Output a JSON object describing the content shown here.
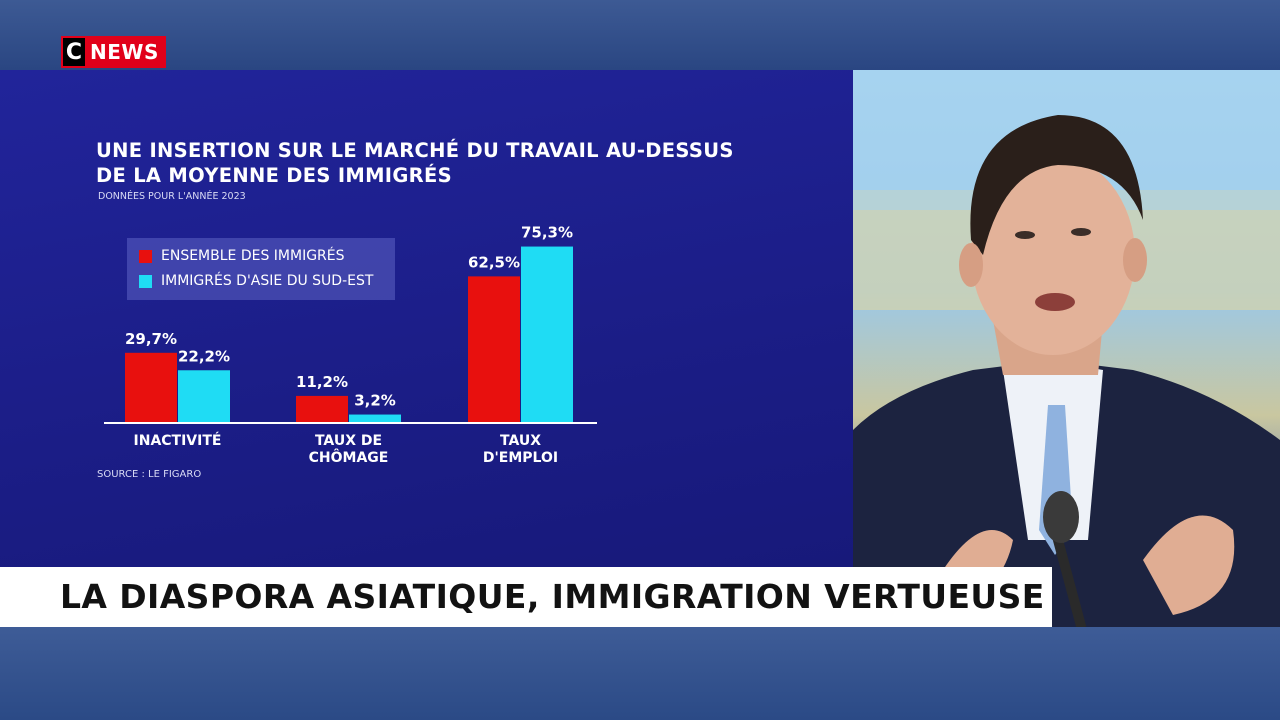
{
  "channel": {
    "logo_c": "C",
    "logo_news": "NEWS"
  },
  "colors": {
    "series_1": "#e8100e",
    "series_2": "#1fdcf4",
    "panel_bg": "#1e2090",
    "logo_red": "#e1001a"
  },
  "headline": "LA DIASPORA ASIATIQUE, IMMIGRATION VERTUEUSE",
  "chart_data": {
    "type": "bar",
    "title_lines": [
      "UNE INSERTION SUR LE MARCHÉ DU TRAVAIL AU-DESSUS",
      "DE LA MOYENNE DES IMMIGRÉS"
    ],
    "subtitle": "DONNÉES POUR L'ANNÉE 2023",
    "source": "SOURCE : LE FIGARO",
    "categories": [
      [
        "INACTIVITÉ"
      ],
      [
        "TAUX DE",
        "CHÔMAGE"
      ],
      [
        "TAUX",
        "D'EMPLOI"
      ]
    ],
    "series": [
      {
        "name": "ENSEMBLE DES IMMIGRÉS",
        "values": [
          29.7,
          11.2,
          62.5
        ],
        "labels": [
          "29,7%",
          "11,2%",
          "62,5%"
        ]
      },
      {
        "name": "IMMIGRÉS D'ASIE DU SUD-EST",
        "values": [
          22.2,
          3.2,
          75.3
        ],
        "labels": [
          "22,2%",
          "3,2%",
          "75,3%"
        ]
      }
    ],
    "legend_position": "top-left",
    "grid": false,
    "ylim": [
      0,
      80
    ]
  }
}
